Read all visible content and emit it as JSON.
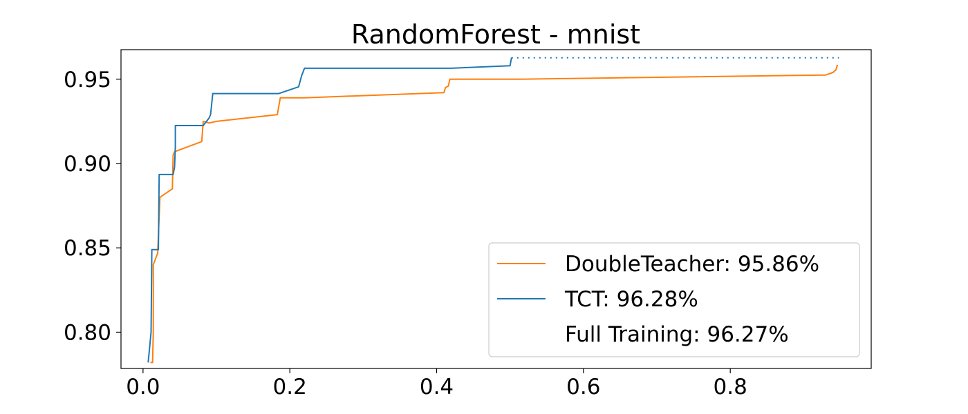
{
  "chart_data": {
    "type": "line",
    "title": "RandomForest - mnist",
    "xlabel": "",
    "ylabel": "",
    "xlim": [
      -0.03,
      0.992
    ],
    "ylim": [
      0.7785,
      0.9675
    ],
    "x_ticks": [
      {
        "value": 0.0,
        "label": "0.0"
      },
      {
        "value": 0.2,
        "label": "0.2"
      },
      {
        "value": 0.4,
        "label": "0.4"
      },
      {
        "value": 0.6,
        "label": "0.6"
      },
      {
        "value": 0.8,
        "label": "0.8"
      }
    ],
    "y_ticks": [
      {
        "value": 0.8,
        "label": "0.80"
      },
      {
        "value": 0.85,
        "label": "0.85"
      },
      {
        "value": 0.9,
        "label": "0.90"
      },
      {
        "value": 0.95,
        "label": "0.95"
      }
    ],
    "grid": false,
    "legend_position": "lower-right",
    "series": [
      {
        "name": "DoubleTeacher",
        "legend_label": "DoubleTeacher: 95.86%",
        "color": "#ff7f0e",
        "style": "solid",
        "points": [
          [
            0.01,
            0.782
          ],
          [
            0.013,
            0.782
          ],
          [
            0.014,
            0.8
          ],
          [
            0.014,
            0.84
          ],
          [
            0.02,
            0.847
          ],
          [
            0.023,
            0.88
          ],
          [
            0.04,
            0.885
          ],
          [
            0.041,
            0.905
          ],
          [
            0.043,
            0.907
          ],
          [
            0.08,
            0.913
          ],
          [
            0.082,
            0.925
          ],
          [
            0.09,
            0.924
          ],
          [
            0.1,
            0.925
          ],
          [
            0.183,
            0.929
          ],
          [
            0.187,
            0.939
          ],
          [
            0.22,
            0.939
          ],
          [
            0.41,
            0.942
          ],
          [
            0.412,
            0.945
          ],
          [
            0.416,
            0.946
          ],
          [
            0.418,
            0.95
          ],
          [
            0.51,
            0.95
          ],
          [
            0.93,
            0.9525
          ],
          [
            0.94,
            0.954
          ],
          [
            0.944,
            0.9555
          ],
          [
            0.946,
            0.9586
          ]
        ]
      },
      {
        "name": "TCT",
        "legend_label": "TCT: 96.28%",
        "color": "#1f77b4",
        "style": "solid",
        "points": [
          [
            0.007,
            0.782
          ],
          [
            0.011,
            0.8
          ],
          [
            0.012,
            0.849
          ],
          [
            0.021,
            0.849
          ],
          [
            0.022,
            0.8935
          ],
          [
            0.041,
            0.8935
          ],
          [
            0.043,
            0.898
          ],
          [
            0.044,
            0.91
          ],
          [
            0.044,
            0.9225
          ],
          [
            0.082,
            0.9225
          ],
          [
            0.09,
            0.927
          ],
          [
            0.092,
            0.929
          ],
          [
            0.093,
            0.933
          ],
          [
            0.095,
            0.9415
          ],
          [
            0.185,
            0.9415
          ],
          [
            0.212,
            0.9455
          ],
          [
            0.216,
            0.952
          ],
          [
            0.22,
            0.9565
          ],
          [
            0.42,
            0.9565
          ],
          [
            0.5,
            0.958
          ],
          [
            0.502,
            0.9628
          ]
        ]
      },
      {
        "name": "Full Training",
        "legend_label": "Full Training: 96.27%",
        "color": "#1f77b4",
        "style": "dotted",
        "points": [
          [
            0.502,
            0.9627
          ],
          [
            0.948,
            0.9627
          ]
        ]
      }
    ]
  }
}
